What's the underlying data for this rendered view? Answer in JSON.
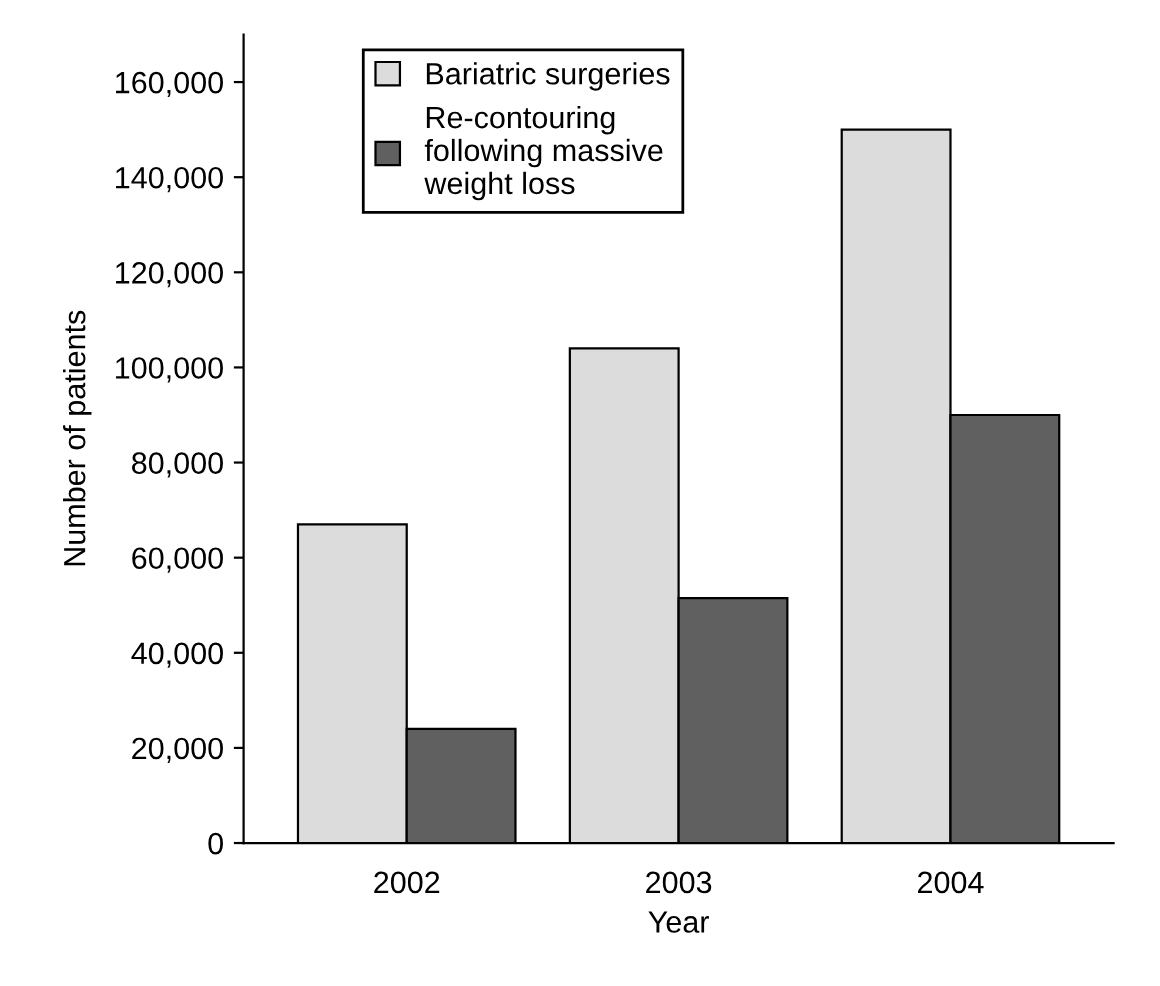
{
  "chart_data": {
    "type": "bar",
    "xlabel": "Year",
    "ylabel": "Number of patients",
    "categories": [
      "2002",
      "2003",
      "2004"
    ],
    "series": [
      {
        "name": "Bariatric surgeries",
        "color": "#dcdcdc",
        "values": [
          67000,
          104000,
          150000
        ]
      },
      {
        "name": "Re-contouring\nfollowing massive\nweight loss",
        "color": "#606060",
        "values": [
          24000,
          51500,
          90000
        ]
      }
    ],
    "ylim": [
      0,
      170000
    ],
    "yticks": [
      {
        "value": 0,
        "label": "0"
      },
      {
        "value": 20000,
        "label": "20,000"
      },
      {
        "value": 40000,
        "label": "40,000"
      },
      {
        "value": 60000,
        "label": "60,000"
      },
      {
        "value": 80000,
        "label": "80,000"
      },
      {
        "value": 100000,
        "label": "100,000"
      },
      {
        "value": 120000,
        "label": "120,000"
      },
      {
        "value": 140000,
        "label": "140,000"
      },
      {
        "value": 160000,
        "label": "160,000"
      }
    ],
    "grid": false,
    "legend": "top left"
  }
}
